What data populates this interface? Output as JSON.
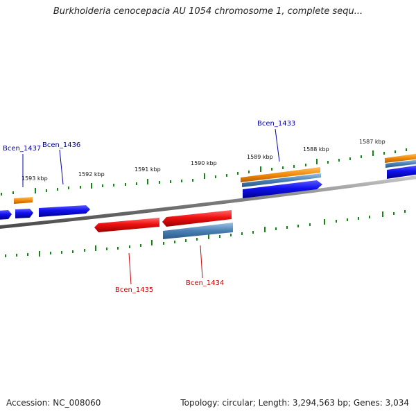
{
  "title": "Burkholderia cenocepacia AU 1054 chromosome 1, complete sequ...",
  "footer": {
    "accession": "Accession: NC_008060",
    "topology": "Topology: circular; Length: 3,294,563 bp; Genes: 3,034"
  },
  "colors": {
    "forward_label": "#00009c",
    "reverse_label": "#cc0000",
    "cds_forward": "#1515ee",
    "cds_reverse": "#ee1111",
    "gene": "#f0900f",
    "mrna": "#4a82b4",
    "tick": "#118811",
    "backbone": "#808080"
  },
  "scale_labels": [
    "1593 kbp",
    "1592 kbp",
    "1591 kbp",
    "1590 kbp",
    "1589 kbp",
    "1588 kbp",
    "1587 kbp"
  ],
  "gene_labels": {
    "forward": [
      "Bcen_1437",
      "Bcen_1436",
      "Bcen_1433"
    ],
    "reverse": [
      "Bcen_1435",
      "Bcen_1434"
    ]
  }
}
